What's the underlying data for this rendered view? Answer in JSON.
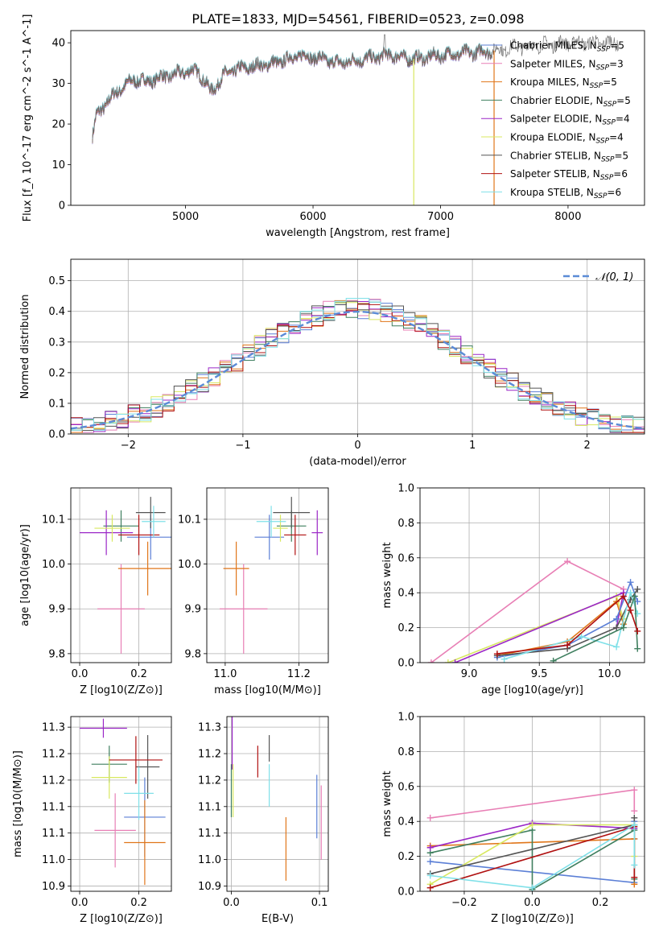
{
  "figure": {
    "title": "PLATE=1833, MJD=54561, FIBERID=0523, z=0.098"
  },
  "colors": {
    "Chabrier MILES": "#5b7fd6",
    "Salpeter MILES": "#e87fb5",
    "Kroupa MILES": "#e0761a",
    "Chabrier ELODIE": "#3f7f5f",
    "Salpeter ELODIE": "#9b27c7",
    "Kroupa ELODIE": "#d8e860",
    "Chabrier STELIB": "#555555",
    "Salpeter STELIB": "#b01010",
    "Kroupa STELIB": "#7fe0e8",
    "gaussian": "#5b8bd6"
  },
  "chart_data": [
    {
      "id": "spectrum",
      "type": "line",
      "xlabel": "wavelength [Angstrom, rest frame]",
      "ylabel": "Flux [f_λ 10^-17 erg cm^-2 s^-1 A^-1]",
      "xlim": [
        4100,
        8600
      ],
      "ylim": [
        0,
        43
      ],
      "xticks": [
        5000,
        6000,
        7000,
        8000
      ],
      "yticks": [
        0,
        10,
        20,
        30,
        40
      ],
      "legend_position": "top-right",
      "series": [
        {
          "name": "Chabrier MILES",
          "nssp": "5"
        },
        {
          "name": "Salpeter MILES",
          "nssp": "3"
        },
        {
          "name": "Kroupa MILES",
          "nssp": "5"
        },
        {
          "name": "Chabrier ELODIE",
          "nssp": "5"
        },
        {
          "name": "Salpeter ELODIE",
          "nssp": "4"
        },
        {
          "name": "Kroupa ELODIE",
          "nssp": "4"
        },
        {
          "name": "Chabrier STELIB",
          "nssp": "5"
        },
        {
          "name": "Salpeter STELIB",
          "nssp": "6"
        },
        {
          "name": "Kroupa STELIB",
          "nssp": "6"
        }
      ],
      "continuum": {
        "x": [
          4270,
          4300,
          4400,
          4500,
          4600,
          4700,
          4800,
          4900,
          5000,
          5100,
          5200,
          5300,
          5400,
          5500,
          5600,
          5700,
          5800,
          5900,
          6000,
          6200,
          6400,
          6600,
          6800,
          7000,
          7200,
          7400,
          7600,
          7800,
          8000,
          8200,
          8400
        ],
        "y": [
          17,
          22,
          26,
          29,
          31,
          30.5,
          31.5,
          32,
          33,
          33,
          28,
          32,
          33.5,
          34,
          34.5,
          35,
          36,
          37,
          36.5,
          35,
          36,
          37,
          36,
          37,
          37.5,
          38,
          39,
          39.5,
          40,
          40,
          40
        ]
      },
      "data_only_range": [
        7400,
        8400
      ],
      "drop_lines": [
        {
          "x": 6790,
          "series": "Kroupa ELODIE"
        },
        {
          "x": 7420,
          "series": "Kroupa MILES"
        }
      ],
      "spike": {
        "x": 6563,
        "y": 42
      }
    },
    {
      "id": "residual_hist",
      "type": "line",
      "xlabel": "(data-model)/error",
      "ylabel": "Normed distribution",
      "xlim": [
        -2.5,
        2.5
      ],
      "ylim": [
        0,
        0.57
      ],
      "xticks": [
        -2,
        -1,
        0,
        1,
        2
      ],
      "yticks": [
        0,
        0.1,
        0.2,
        0.3,
        0.4,
        0.5
      ],
      "grid": true,
      "legend": "𝒩(0, 1)",
      "bin_width": 0.1,
      "gaussian": {
        "mean": 0,
        "sigma": 1
      }
    },
    {
      "id": "age_vs_Z",
      "type": "scatter",
      "xlabel": "Z [log10(Z/Z⊙)]",
      "ylabel": "age  [log10(age/yr)]",
      "xlim": [
        -0.03,
        0.31
      ],
      "ylim": [
        9.78,
        10.17
      ],
      "xticks": [
        0.0,
        0.2
      ],
      "yticks": [
        9.8,
        9.9,
        10.0,
        10.1
      ],
      "grid": true,
      "points": [
        {
          "series": "Chabrier MILES",
          "x": 0.24,
          "y": 10.06,
          "xerr": 0.08,
          "yerr": 0.05
        },
        {
          "series": "Salpeter MILES",
          "x": 0.14,
          "y": 9.9,
          "xerr": 0.08,
          "yerr": 0.1
        },
        {
          "series": "Kroupa MILES",
          "x": 0.23,
          "y": 9.99,
          "xerr": 0.1,
          "yerr": 0.06
        },
        {
          "series": "Chabrier ELODIE",
          "x": 0.14,
          "y": 10.085,
          "xerr": 0.06,
          "yerr": 0.035
        },
        {
          "series": "Salpeter ELODIE",
          "x": 0.09,
          "y": 10.07,
          "xerr": 0.09,
          "yerr": 0.05
        },
        {
          "series": "Kroupa ELODIE",
          "x": 0.11,
          "y": 10.08,
          "xerr": 0.06,
          "yerr": 0.03
        },
        {
          "series": "Chabrier STELIB",
          "x": 0.24,
          "y": 10.115,
          "xerr": 0.05,
          "yerr": 0.035
        },
        {
          "series": "Salpeter STELIB",
          "x": 0.2,
          "y": 10.065,
          "xerr": 0.07,
          "yerr": 0.045
        },
        {
          "series": "Kroupa STELIB",
          "x": 0.25,
          "y": 10.095,
          "xerr": 0.04,
          "yerr": 0.035
        }
      ]
    },
    {
      "id": "age_vs_mass",
      "type": "scatter",
      "xlabel": "mass [log10(M/M⊙)]",
      "ylabel": "",
      "xlim": [
        10.95,
        11.28
      ],
      "ylim": [
        9.78,
        10.17
      ],
      "xticks": [
        11.0,
        11.2
      ],
      "yticks": [
        9.8,
        9.9,
        10.0,
        10.1
      ],
      "grid": true,
      "points": [
        {
          "series": "Chabrier MILES",
          "x": 11.12,
          "y": 10.06,
          "xerr": 0.04,
          "yerr": 0.05
        },
        {
          "series": "Salpeter MILES",
          "x": 11.05,
          "y": 9.9,
          "xerr": 0.065,
          "yerr": 0.1
        },
        {
          "series": "Kroupa MILES",
          "x": 11.03,
          "y": 9.99,
          "xerr": 0.035,
          "yerr": 0.06
        },
        {
          "series": "Chabrier ELODIE",
          "x": 11.18,
          "y": 10.085,
          "xerr": 0.04,
          "yerr": 0.035
        },
        {
          "series": "Salpeter ELODIE",
          "x": 11.25,
          "y": 10.07,
          "xerr": 0.015,
          "yerr": 0.05
        },
        {
          "series": "Kroupa ELODIE",
          "x": 11.15,
          "y": 10.08,
          "xerr": 0.02,
          "yerr": 0.03
        },
        {
          "series": "Chabrier STELIB",
          "x": 11.18,
          "y": 10.115,
          "xerr": 0.05,
          "yerr": 0.035
        },
        {
          "series": "Salpeter STELIB",
          "x": 11.19,
          "y": 10.065,
          "xerr": 0.03,
          "yerr": 0.045
        },
        {
          "series": "Kroupa STELIB",
          "x": 11.125,
          "y": 10.095,
          "xerr": 0.04,
          "yerr": 0.035
        }
      ]
    },
    {
      "id": "weight_vs_age",
      "type": "line",
      "xlabel": "age  [log10(age/yr)]",
      "ylabel": "mass weight",
      "xlim": [
        8.65,
        10.25
      ],
      "ylim": [
        0,
        1
      ],
      "xticks": [
        9.0,
        9.5,
        10.0
      ],
      "yticks": [
        0,
        0.2,
        0.4,
        0.6,
        0.8,
        1.0
      ],
      "grid": true,
      "series": [
        {
          "name": "Salpeter MILES",
          "x": [
            8.73,
            9.7,
            10.1
          ],
          "y": [
            0.0,
            0.58,
            0.42
          ]
        },
        {
          "name": "Kroupa ELODIE",
          "x": [
            8.85,
            10.05,
            10.1
          ],
          "y": [
            0.0,
            0.38,
            0.25
          ]
        },
        {
          "name": "Salpeter ELODIE",
          "x": [
            8.9,
            10.1,
            10.05
          ],
          "y": [
            0.0,
            0.4,
            0.2
          ]
        },
        {
          "name": "Kroupa MILES",
          "x": [
            9.2,
            9.7,
            10.05,
            10.1
          ],
          "y": [
            0.04,
            0.12,
            0.35,
            0.22
          ]
        },
        {
          "name": "Chabrier MILES",
          "x": [
            9.2,
            9.7,
            10.05,
            10.15,
            10.2
          ],
          "y": [
            0.03,
            0.1,
            0.25,
            0.46,
            0.35
          ]
        },
        {
          "name": "Chabrier STELIB",
          "x": [
            9.2,
            9.7,
            10.05,
            10.15,
            10.2
          ],
          "y": [
            0.04,
            0.08,
            0.2,
            0.36,
            0.42
          ]
        },
        {
          "name": "Kroupa STELIB",
          "x": [
            9.25,
            9.8,
            10.05,
            10.15,
            10.2
          ],
          "y": [
            0.02,
            0.15,
            0.09,
            0.4,
            0.28
          ]
        },
        {
          "name": "Chabrier ELODIE",
          "x": [
            9.6,
            10.1,
            10.18,
            10.2
          ],
          "y": [
            0.01,
            0.2,
            0.38,
            0.08
          ]
        },
        {
          "name": "Salpeter STELIB",
          "x": [
            9.2,
            9.7,
            10.1,
            10.15,
            10.2
          ],
          "y": [
            0.05,
            0.1,
            0.38,
            0.3,
            0.18
          ]
        }
      ]
    },
    {
      "id": "mass_vs_Z",
      "type": "scatter",
      "xlabel": "Z [log10(Z/Z⊙)]",
      "ylabel": "mass [log10(M/M⊙)]",
      "xlim": [
        -0.03,
        0.31
      ],
      "ylim": [
        10.94,
        11.27
      ],
      "xticks": [
        0.0,
        0.2
      ],
      "yticks": [
        10.95,
        11.0,
        11.05,
        11.1,
        11.15,
        11.2,
        11.25
      ],
      "grid": true,
      "points": [
        {
          "series": "Chabrier MILES",
          "x": 0.22,
          "y": 11.08,
          "xerr": 0.07,
          "yerr": 0.075
        },
        {
          "series": "Salpeter MILES",
          "x": 0.12,
          "y": 11.055,
          "xerr": 0.07,
          "yerr": 0.07
        },
        {
          "series": "Kroupa MILES",
          "x": 0.22,
          "y": 11.032,
          "xerr": 0.07,
          "yerr": 0.08
        },
        {
          "series": "Chabrier ELODIE",
          "x": 0.1,
          "y": 11.18,
          "xerr": 0.06,
          "yerr": 0.035
        },
        {
          "series": "Salpeter ELODIE",
          "x": 0.08,
          "y": 11.248,
          "xerr": 0.08,
          "yerr": 0.018
        },
        {
          "series": "Kroupa ELODIE",
          "x": 0.1,
          "y": 11.155,
          "xerr": 0.06,
          "yerr": 0.04
        },
        {
          "series": "Chabrier STELIB",
          "x": 0.23,
          "y": 11.175,
          "xerr": 0.04,
          "yerr": 0.06
        },
        {
          "series": "Salpeter STELIB",
          "x": 0.19,
          "y": 11.188,
          "xerr": 0.09,
          "yerr": 0.045
        },
        {
          "series": "Kroupa STELIB",
          "x": 0.2,
          "y": 11.125,
          "xerr": 0.05,
          "yerr": 0.05
        }
      ]
    },
    {
      "id": "mass_vs_ebv",
      "type": "scatter",
      "xlabel": "E(B-V)",
      "ylabel": "",
      "xlim": [
        -0.005,
        0.11
      ],
      "ylim": [
        10.94,
        11.27
      ],
      "xticks": [
        0.0,
        0.1
      ],
      "yticks": [
        10.95,
        11.0,
        11.05,
        11.1,
        11.15,
        11.2,
        11.25
      ],
      "grid": true,
      "points": [
        {
          "series": "Chabrier MILES",
          "x": 0.097,
          "y": 11.1,
          "xerr": 0,
          "yerr": 0.06
        },
        {
          "series": "Salpeter MILES",
          "x": 0.102,
          "y": 11.07,
          "xerr": 0,
          "yerr": 0.07
        },
        {
          "series": "Kroupa MILES",
          "x": 0.062,
          "y": 11.02,
          "xerr": 0,
          "yerr": 0.06
        },
        {
          "series": "Chabrier ELODIE",
          "x": 0.0,
          "y": 11.13,
          "xerr": 0,
          "yerr": 0.05
        },
        {
          "series": "Salpeter ELODIE",
          "x": 0.001,
          "y": 11.22,
          "xerr": 0,
          "yerr": 0.05
        },
        {
          "series": "Kroupa ELODIE",
          "x": 0.002,
          "y": 11.13,
          "xerr": 0,
          "yerr": 0.05
        },
        {
          "series": "Chabrier STELIB",
          "x": 0.043,
          "y": 11.21,
          "xerr": 0,
          "yerr": 0.025
        },
        {
          "series": "Salpeter STELIB",
          "x": 0.03,
          "y": 11.185,
          "xerr": 0,
          "yerr": 0.03
        },
        {
          "series": "Kroupa STELIB",
          "x": 0.043,
          "y": 11.14,
          "xerr": 0,
          "yerr": 0.04
        }
      ]
    },
    {
      "id": "weight_vs_Z",
      "type": "line",
      "xlabel": "Z [log10(Z/Z⊙)]",
      "ylabel": "mass weight",
      "xlim": [
        -0.33,
        0.33
      ],
      "ylim": [
        0,
        1
      ],
      "xticks": [
        -0.2,
        0.0,
        0.2
      ],
      "yticks": [
        0,
        0.2,
        0.4,
        0.6,
        0.8,
        1.0
      ],
      "grid": true,
      "series": [
        {
          "name": "Salpeter MILES",
          "x": [
            -0.3,
            0.3,
            0.3
          ],
          "y": [
            0.42,
            0.58,
            0.46
          ]
        },
        {
          "name": "Chabrier MILES",
          "x": [
            -0.3,
            0.3,
            0.3,
            0.3
          ],
          "y": [
            0.17,
            0.05,
            0.4,
            0.3
          ]
        },
        {
          "name": "Kroupa MILES",
          "x": [
            -0.3,
            0.3,
            0.3
          ],
          "y": [
            0.26,
            0.3,
            0.04
          ]
        },
        {
          "name": "Chabrier ELODIE",
          "x": [
            -0.3,
            0.0,
            0.0,
            0.3,
            0.3
          ],
          "y": [
            0.22,
            0.35,
            0.01,
            0.35,
            0.07
          ]
        },
        {
          "name": "Salpeter ELODIE",
          "x": [
            -0.3,
            0.0,
            0.3
          ],
          "y": [
            0.25,
            0.39,
            0.36
          ]
        },
        {
          "name": "Kroupa ELODIE",
          "x": [
            -0.3,
            0.0,
            0.3,
            0.3
          ],
          "y": [
            0.04,
            0.38,
            0.38,
            0.2
          ]
        },
        {
          "name": "Chabrier STELIB",
          "x": [
            -0.3,
            0.3,
            0.3
          ],
          "y": [
            0.1,
            0.38,
            0.42
          ]
        },
        {
          "name": "Salpeter STELIB",
          "x": [
            -0.3,
            0.3,
            0.3
          ],
          "y": [
            0.02,
            0.37,
            0.08
          ]
        },
        {
          "name": "Kroupa STELIB",
          "x": [
            -0.3,
            0.0,
            0.3,
            0.3
          ],
          "y": [
            0.09,
            0.02,
            0.38,
            0.15
          ]
        }
      ]
    }
  ]
}
